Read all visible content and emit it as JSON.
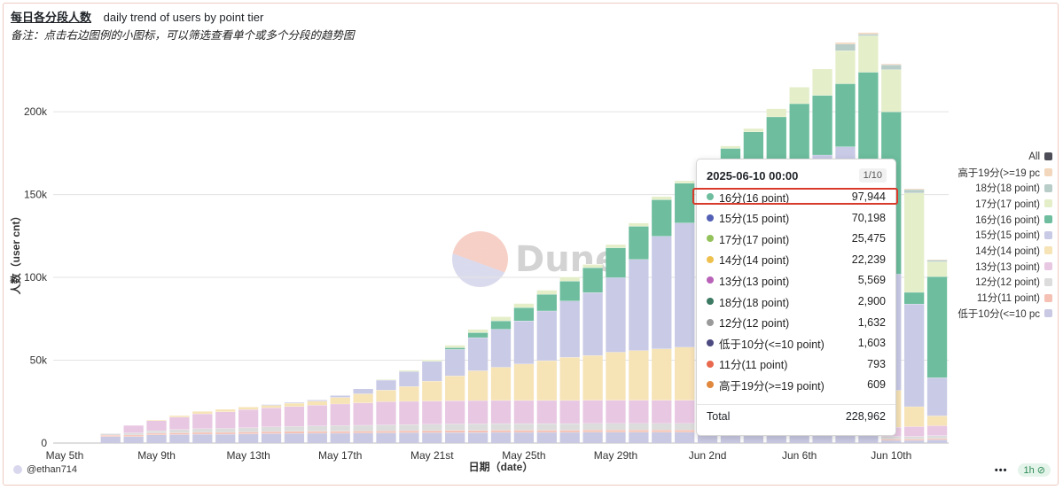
{
  "header": {
    "title": "每日各分段人数",
    "subtitle": "daily trend of users by point tier",
    "note": "备注：点击右边图例的小图标，可以筛选查看单个或多个分段的趋势图"
  },
  "chart_data": {
    "type": "bar",
    "stacked": true,
    "xlabel": "日期（date）",
    "ylabel": "人数（user cnt）",
    "ylim": [
      0,
      230000
    ],
    "y_ticks": [
      0,
      50000,
      100000,
      150000,
      200000
    ],
    "y_tick_labels": [
      "0",
      "50k",
      "100k",
      "150k",
      "200k"
    ],
    "x_tick_labels": [
      "May 5th",
      "May 9th",
      "May 13th",
      "May 17th",
      "May 21st",
      "May 25th",
      "May 29th",
      "Jun 2nd",
      "Jun 6th",
      "Jun 10th"
    ],
    "x_tick_index": [
      0,
      4,
      8,
      12,
      16,
      20,
      24,
      28,
      32,
      36
    ],
    "categories": [
      "May 5",
      "May 6",
      "May 7",
      "May 8",
      "May 9",
      "May 10",
      "May 11",
      "May 12",
      "May 13",
      "May 14",
      "May 15",
      "May 16",
      "May 17",
      "May 18",
      "May 19",
      "May 20",
      "May 21",
      "May 22",
      "May 23",
      "May 24",
      "May 25",
      "May 26",
      "May 27",
      "May 28",
      "May 29",
      "May 30",
      "May 31",
      "Jun 1",
      "Jun 2",
      "Jun 3",
      "Jun 4",
      "Jun 5",
      "Jun 6",
      "Jun 7",
      "Jun 8",
      "Jun 9",
      "Jun 10",
      "Jun 11",
      "Jun 12"
    ],
    "grid": true,
    "legend_position": "right",
    "series": [
      {
        "name": "低于10分(<=10 pc",
        "color": "#c9c9e3",
        "values": [
          0,
          0,
          4000,
          4000,
          5000,
          5200,
          5400,
          5400,
          5600,
          5800,
          5900,
          6000,
          6000,
          6100,
          6200,
          6300,
          6300,
          6400,
          6400,
          6500,
          6500,
          6500,
          6500,
          6600,
          6600,
          6600,
          6600,
          6600,
          6600,
          6600,
          6600,
          6600,
          6600,
          6600,
          6600,
          6600,
          1603,
          1600,
          2000
        ]
      },
      {
        "name": "11分(11 point)",
        "color": "#f5c1b4",
        "values": [
          0,
          0,
          800,
          900,
          1000,
          1000,
          1100,
          1100,
          1100,
          1200,
          1200,
          1200,
          1200,
          1200,
          1200,
          1200,
          1300,
          1300,
          1300,
          1300,
          1300,
          1300,
          1300,
          1300,
          1300,
          1300,
          1300,
          1300,
          1300,
          1300,
          1300,
          1300,
          1300,
          1300,
          1300,
          1300,
          793,
          800,
          800
        ]
      },
      {
        "name": "12分(12 point)",
        "color": "#dcdcdc",
        "values": [
          0,
          0,
          1000,
          1300,
          1500,
          2000,
          2200,
          2400,
          2600,
          2800,
          3000,
          3200,
          3400,
          3500,
          3600,
          3700,
          3800,
          3900,
          4000,
          4000,
          4000,
          4000,
          4000,
          4000,
          4000,
          4000,
          4000,
          4000,
          4000,
          4000,
          4000,
          4000,
          4000,
          4000,
          4000,
          4000,
          1632,
          1600,
          1700
        ]
      },
      {
        "name": "13分(13 point)",
        "color": "#e8c7e2",
        "values": [
          0,
          0,
          0,
          4500,
          6000,
          7500,
          9000,
          10000,
          11000,
          11500,
          12000,
          12500,
          13000,
          13500,
          14000,
          14000,
          14000,
          14000,
          14000,
          14000,
          14000,
          14000,
          14000,
          14000,
          14000,
          14000,
          14000,
          14000,
          14000,
          14000,
          14000,
          14000,
          14000,
          14000,
          14000,
          14000,
          5569,
          6000,
          6000
        ]
      },
      {
        "name": "14分(14 point)",
        "color": "#f6e3b6",
        "values": [
          0,
          0,
          0,
          0,
          500,
          1000,
          1500,
          1500,
          1500,
          1500,
          2000,
          2500,
          4000,
          5500,
          7000,
          9000,
          12000,
          15000,
          18000,
          20000,
          22000,
          24000,
          26000,
          27000,
          29000,
          30000,
          31000,
          32000,
          33000,
          34000,
          35000,
          36000,
          37000,
          38000,
          39000,
          40000,
          22239,
          12000,
          6000
        ]
      },
      {
        "name": "15分(15 point)",
        "color": "#c9cae6",
        "values": [
          0,
          0,
          0,
          0,
          0,
          0,
          0,
          0,
          0,
          500,
          500,
          700,
          1200,
          3000,
          6000,
          9000,
          12000,
          16000,
          20000,
          23000,
          26000,
          30000,
          34000,
          38000,
          45000,
          55000,
          68000,
          75000,
          82000,
          90000,
          97000,
          103000,
          108000,
          110000,
          114000,
          98000,
          70198,
          62000,
          23000
        ]
      },
      {
        "name": "16分(16 point)",
        "color": "#6dbd9e",
        "values": [
          0,
          0,
          0,
          0,
          0,
          0,
          0,
          0,
          0,
          0,
          0,
          0,
          0,
          0,
          0,
          0,
          0,
          1000,
          3000,
          5000,
          8000,
          10000,
          12000,
          15000,
          18000,
          20000,
          22000,
          24000,
          26000,
          28000,
          30000,
          32000,
          34000,
          36000,
          38000,
          60000,
          97944,
          7000,
          61000
        ]
      },
      {
        "name": "17分(17 point)",
        "color": "#e4eec9",
        "values": [
          0,
          0,
          0,
          0,
          0,
          0,
          0,
          0,
          0,
          0,
          0,
          0,
          0,
          0,
          500,
          800,
          1000,
          1500,
          2000,
          2500,
          2500,
          2500,
          2500,
          2000,
          2000,
          2000,
          2000,
          1500,
          1500,
          1500,
          2000,
          5000,
          10000,
          16000,
          20000,
          22000,
          25475,
          60000,
          9000
        ]
      },
      {
        "name": "18分(18 point)",
        "color": "#b8ccc8",
        "values": [
          0,
          0,
          0,
          0,
          0,
          0,
          0,
          0,
          0,
          0,
          0,
          0,
          0,
          0,
          0,
          0,
          0,
          0,
          0,
          0,
          0,
          0,
          0,
          0,
          0,
          0,
          0,
          0,
          0,
          0,
          0,
          0,
          0,
          0,
          4000,
          1000,
          2900,
          2000,
          1000
        ]
      },
      {
        "name": "高于19分(>=19 pc",
        "color": "#f2d7bd",
        "values": [
          0,
          0,
          0,
          0,
          0,
          0,
          0,
          0,
          0,
          0,
          0,
          0,
          0,
          0,
          0,
          0,
          0,
          0,
          0,
          0,
          0,
          0,
          0,
          0,
          0,
          0,
          0,
          0,
          0,
          0,
          0,
          0,
          0,
          0,
          1000,
          1000,
          609,
          600,
          400
        ]
      }
    ]
  },
  "legend": {
    "all_label": "All",
    "all_color": "#4d4d57"
  },
  "tooltip": {
    "date": "2025-06-10 00:00",
    "page": "1/10",
    "rows": [
      {
        "name": "16分(16 point)",
        "value": "97,944",
        "color": "#6dbd9e"
      },
      {
        "name": "15分(15 point)",
        "value": "70,198",
        "color": "#5360b5"
      },
      {
        "name": "17分(17 point)",
        "value": "25,475",
        "color": "#93c15a"
      },
      {
        "name": "14分(14 point)",
        "value": "22,239",
        "color": "#eec04d"
      },
      {
        "name": "13分(13 point)",
        "value": "5,569",
        "color": "#b963b8"
      },
      {
        "name": "18分(18 point)",
        "value": "2,900",
        "color": "#3d7a63"
      },
      {
        "name": "12分(12 point)",
        "value": "1,632",
        "color": "#9a9a9a"
      },
      {
        "name": "低于10分(<=10 point)",
        "value": "1,603",
        "color": "#4c4a80"
      },
      {
        "name": "11分(11 point)",
        "value": "793",
        "color": "#e8694e"
      },
      {
        "name": "高于19分(>=19 point)",
        "value": "609",
        "color": "#e0883d"
      }
    ],
    "total_label": "Total",
    "total_value": "228,962"
  },
  "footer": {
    "user": "@ethan714",
    "more": "•••",
    "badge": "1h ⊘"
  },
  "watermark": "Dune"
}
